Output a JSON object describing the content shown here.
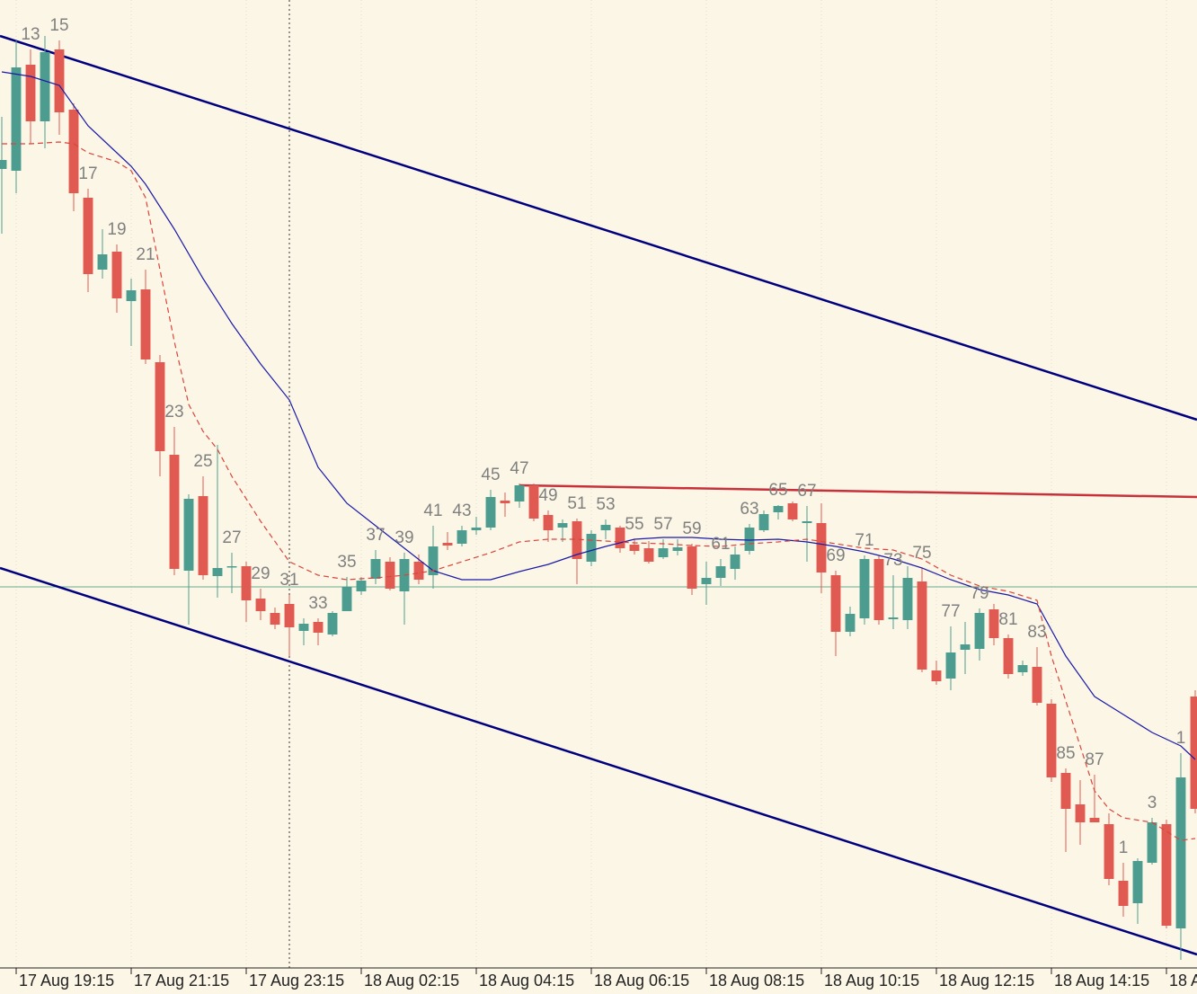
{
  "chart_data": {
    "type": "candlestick",
    "x": [
      11,
      12,
      13,
      14,
      15,
      16,
      17,
      18,
      19,
      20,
      21,
      22,
      23,
      24,
      25,
      26,
      27,
      28,
      29,
      30,
      31,
      32,
      33,
      34,
      35,
      36,
      37,
      38,
      39,
      40,
      41,
      42,
      43,
      44,
      45,
      46,
      47,
      48,
      49,
      50,
      51,
      52,
      53,
      54,
      55,
      56,
      57,
      58,
      59,
      60,
      61,
      62,
      63,
      64,
      65,
      66,
      67,
      68,
      69,
      70,
      71,
      72,
      73,
      74,
      75,
      76,
      77,
      78,
      79,
      80,
      81,
      82,
      83,
      84,
      85,
      86,
      87,
      88,
      89,
      90,
      91,
      92,
      93,
      94
    ],
    "open": [
      887,
      885,
      1003,
      940,
      1020,
      953,
      855,
      775,
      795,
      740,
      753,
      672,
      569,
      440,
      523,
      434,
      444,
      445,
      409,
      393,
      403,
      373,
      383,
      369,
      395,
      417,
      431,
      450,
      417,
      450,
      435,
      471,
      470,
      485,
      488,
      518,
      517,
      535,
      502,
      488,
      495,
      450,
      485,
      488,
      469,
      465,
      455,
      462,
      467,
      425,
      432,
      442,
      462,
      485,
      505,
      515,
      493,
      493,
      435,
      372,
      387,
      453,
      386,
      385,
      428,
      329,
      320,
      352,
      353,
      397,
      365,
      327,
      333,
      292,
      215,
      180,
      165,
      158,
      95,
      70,
      115,
      158,
      42,
      300
    ],
    "high": [
      945,
      1030,
      1020,
      1035,
      1030,
      960,
      865,
      820,
      803,
      765,
      775,
      680,
      600,
      525,
      545,
      580,
      460,
      450,
      420,
      399,
      413,
      387,
      387,
      395,
      433,
      433,
      463,
      455,
      460,
      458,
      490,
      483,
      490,
      500,
      530,
      527,
      537,
      537,
      507,
      497,
      498,
      485,
      497,
      490,
      475,
      473,
      475,
      475,
      470,
      450,
      453,
      467,
      492,
      507,
      513,
      517,
      512,
      515,
      440,
      400,
      457,
      457,
      435,
      445,
      443,
      340,
      378,
      383,
      398,
      403,
      369,
      340,
      355,
      297,
      220,
      207,
      213,
      170,
      115,
      120,
      165,
      163,
      237,
      307
    ],
    "low": [
      815,
      860,
      915,
      910,
      925,
      840,
      750,
      765,
      727,
      690,
      670,
      545,
      435,
      380,
      430,
      410,
      415,
      383,
      385,
      375,
      345,
      357,
      357,
      367,
      395,
      413,
      425,
      418,
      380,
      425,
      420,
      463,
      467,
      480,
      485,
      500,
      510,
      495,
      472,
      472,
      425,
      445,
      475,
      460,
      458,
      448,
      453,
      457,
      413,
      402,
      423,
      430,
      458,
      483,
      497,
      495,
      450,
      415,
      345,
      367,
      380,
      380,
      375,
      375,
      327,
      313,
      307,
      325,
      340,
      357,
      320,
      323,
      290,
      205,
      127,
      135,
      160,
      90,
      55,
      47,
      113,
      42,
      7,
      170
    ],
    "close": [
      897,
      1000,
      940,
      1017,
      950,
      860,
      770,
      792,
      743,
      752,
      675,
      573,
      442,
      520,
      435,
      443,
      445,
      407,
      395,
      380,
      377,
      381,
      371,
      393,
      422,
      429,
      453,
      420,
      453,
      430,
      467,
      468,
      485,
      488,
      522,
      515,
      535,
      498,
      485,
      493,
      453,
      481,
      491,
      465,
      462,
      450,
      465,
      466,
      420,
      432,
      445,
      458,
      488,
      503,
      512,
      497,
      495,
      438,
      372,
      392,
      453,
      385,
      388,
      432,
      330,
      317,
      349,
      358,
      393,
      365,
      325,
      335,
      293,
      210,
      175,
      160,
      160,
      97,
      67,
      117,
      160,
      45,
      210,
      175
    ],
    "up_color": "#4c9d8f",
    "down_color": "#e05a52",
    "series": [
      {
        "color": "#1a1aa8",
        "style": "solid",
        "x": [
          11,
          13,
          15,
          17,
          19,
          20,
          21,
          23,
          25,
          27,
          29,
          31,
          33,
          35,
          37,
          39,
          41,
          43,
          45,
          47,
          49,
          51,
          53,
          55,
          57,
          59,
          61,
          63,
          65,
          67,
          69,
          71,
          73,
          75,
          77,
          79,
          81,
          83,
          85,
          87,
          89,
          91,
          93,
          94
        ],
        "values": [
          995,
          990,
          980,
          935,
          905,
          890,
          870,
          820,
          765,
          715,
          670,
          630,
          555,
          515,
          490,
          465,
          440,
          430,
          430,
          439,
          447,
          458,
          467,
          475,
          477,
          477,
          475,
          474,
          475,
          472,
          467,
          461,
          453,
          443,
          430,
          419,
          413,
          403,
          345,
          300,
          280,
          260,
          245,
          230
        ]
      },
      {
        "color": "#d9453c",
        "style": "dashed",
        "x": [
          11,
          13,
          15,
          16,
          17,
          19,
          20,
          21,
          22,
          23,
          24,
          25,
          26,
          27,
          29,
          31,
          33,
          35,
          37,
          39,
          41,
          43,
          45,
          47,
          49,
          51,
          53,
          55,
          57,
          59,
          61,
          63,
          65,
          67,
          69,
          71,
          73,
          75,
          77,
          79,
          81,
          83,
          84,
          85,
          86,
          87,
          88,
          89,
          91,
          93,
          94
        ],
        "values": [
          915,
          915,
          917,
          915,
          905,
          895,
          885,
          855,
          775,
          695,
          625,
          595,
          575,
          545,
          495,
          450,
          435,
          430,
          432,
          435,
          440,
          450,
          460,
          472,
          475,
          475,
          473,
          471,
          470,
          468,
          467,
          470,
          472,
          475,
          470,
          465,
          463,
          453,
          435,
          423,
          417,
          407,
          345,
          295,
          245,
          195,
          175,
          165,
          160,
          140,
          142
        ]
      }
    ],
    "lines": [
      {
        "color": "#00007f",
        "x": [
          10.875,
          94.125
        ],
        "values": [
          1035,
          608
        ]
      },
      {
        "color": "#00007f",
        "x": [
          10.875,
          94.125
        ],
        "values": [
          443,
          13
        ]
      },
      {
        "color": "#c8303a",
        "x": [
          47,
          94.125
        ],
        "values": [
          535,
          522
        ]
      }
    ],
    "hline": {
      "value": 422,
      "color": "#6aaa90"
    },
    "vline": {
      "x": 31
    },
    "annotations": [
      {
        "x": 13,
        "text": "13"
      },
      {
        "x": 15,
        "text": "15"
      },
      {
        "x": 17,
        "text": "17"
      },
      {
        "x": 19,
        "text": "19"
      },
      {
        "x": 21,
        "text": "21"
      },
      {
        "x": 23,
        "text": "23"
      },
      {
        "x": 25,
        "text": "25"
      },
      {
        "x": 27,
        "text": "27"
      },
      {
        "x": 29,
        "text": "29"
      },
      {
        "x": 31,
        "text": "31"
      },
      {
        "x": 33,
        "text": "33"
      },
      {
        "x": 35,
        "text": "35"
      },
      {
        "x": 37,
        "text": "37"
      },
      {
        "x": 39,
        "text": "39"
      },
      {
        "x": 41,
        "text": "41"
      },
      {
        "x": 43,
        "text": "43"
      },
      {
        "x": 45,
        "text": "45"
      },
      {
        "x": 47,
        "text": "47"
      },
      {
        "x": 49,
        "text": "49"
      },
      {
        "x": 51,
        "text": "51"
      },
      {
        "x": 53,
        "text": "53"
      },
      {
        "x": 55,
        "text": "55"
      },
      {
        "x": 57,
        "text": "57"
      },
      {
        "x": 59,
        "text": "59"
      },
      {
        "x": 61,
        "text": "61"
      },
      {
        "x": 63,
        "text": "63"
      },
      {
        "x": 65,
        "text": "65"
      },
      {
        "x": 67,
        "text": "67"
      },
      {
        "x": 69,
        "text": "69"
      },
      {
        "x": 71,
        "text": "71"
      },
      {
        "x": 73,
        "text": "73"
      },
      {
        "x": 75,
        "text": "75"
      },
      {
        "x": 77,
        "text": "77"
      },
      {
        "x": 79,
        "text": "79"
      },
      {
        "x": 81,
        "text": "81"
      },
      {
        "x": 83,
        "text": "83"
      },
      {
        "x": 85,
        "text": "85"
      },
      {
        "x": 87,
        "text": "87"
      },
      {
        "x": 89,
        "text": "1"
      },
      {
        "x": 91,
        "text": "3"
      },
      {
        "x": 93,
        "text": "1"
      }
    ],
    "xlim": [
      10.875,
      94.125
    ],
    "ylim": [
      0,
      1075
    ],
    "xticks": [
      {
        "value": 12,
        "label": "17 Aug 19:15"
      },
      {
        "value": 20,
        "label": "17 Aug 21:15"
      },
      {
        "value": 28,
        "label": "17 Aug 23:15"
      },
      {
        "value": 36,
        "label": "18 Aug 02:15"
      },
      {
        "value": 44,
        "label": "18 Aug 04:15"
      },
      {
        "value": 52,
        "label": "18 Aug 06:15"
      },
      {
        "value": 60,
        "label": "18 Aug 08:15"
      },
      {
        "value": 68,
        "label": "18 Aug 10:15"
      },
      {
        "value": 76,
        "label": "18 Aug 12:15"
      },
      {
        "value": 84,
        "label": "18 Aug 14:15"
      },
      {
        "value": 92,
        "label": "18 A"
      }
    ],
    "grid": true
  }
}
